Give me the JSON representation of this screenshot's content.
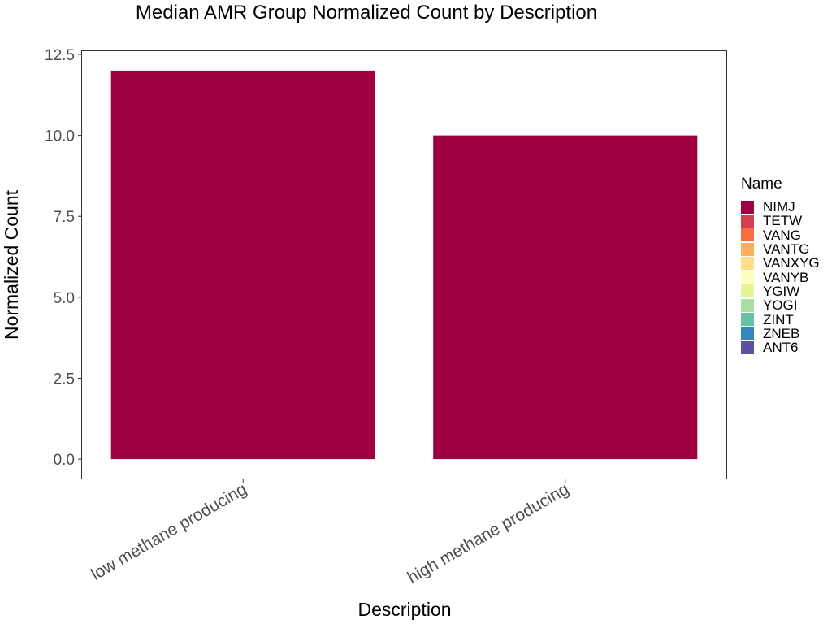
{
  "chart_data": {
    "type": "bar",
    "title": "Median AMR Group Normalized Count by Description",
    "xlabel": "Description",
    "ylabel": "Normalized Count",
    "categories": [
      "low methane producing",
      "high methane producing"
    ],
    "series": [
      {
        "name": "NIMJ",
        "color": "#9E0142",
        "values": [
          12,
          10
        ]
      }
    ],
    "ylim": [
      -0.6,
      12.6
    ],
    "yticks": [
      0,
      2.5,
      5,
      7.5,
      10,
      12.5
    ],
    "ytick_labels": [
      "0.0",
      "2.5",
      "5.0",
      "7.5",
      "10.0",
      "12.5"
    ],
    "grid": false,
    "legend": {
      "title": "Name",
      "placement": "right",
      "items": [
        {
          "label": "NIMJ",
          "color": "#9E0142"
        },
        {
          "label": "TETW",
          "color": "#D53E4F"
        },
        {
          "label": "VANG",
          "color": "#F46D43"
        },
        {
          "label": "VANTG",
          "color": "#FDAE61"
        },
        {
          "label": "VANXYG",
          "color": "#FEE08B"
        },
        {
          "label": "VANYB",
          "color": "#FFFFBF"
        },
        {
          "label": "YGIW",
          "color": "#E6F598"
        },
        {
          "label": "YOGI",
          "color": "#ABDDA4"
        },
        {
          "label": "ZINT",
          "color": "#66C2A5"
        },
        {
          "label": "ZNEB",
          "color": "#3288BD"
        },
        {
          "label": "ANT6",
          "color": "#5E4FA2"
        }
      ]
    }
  }
}
